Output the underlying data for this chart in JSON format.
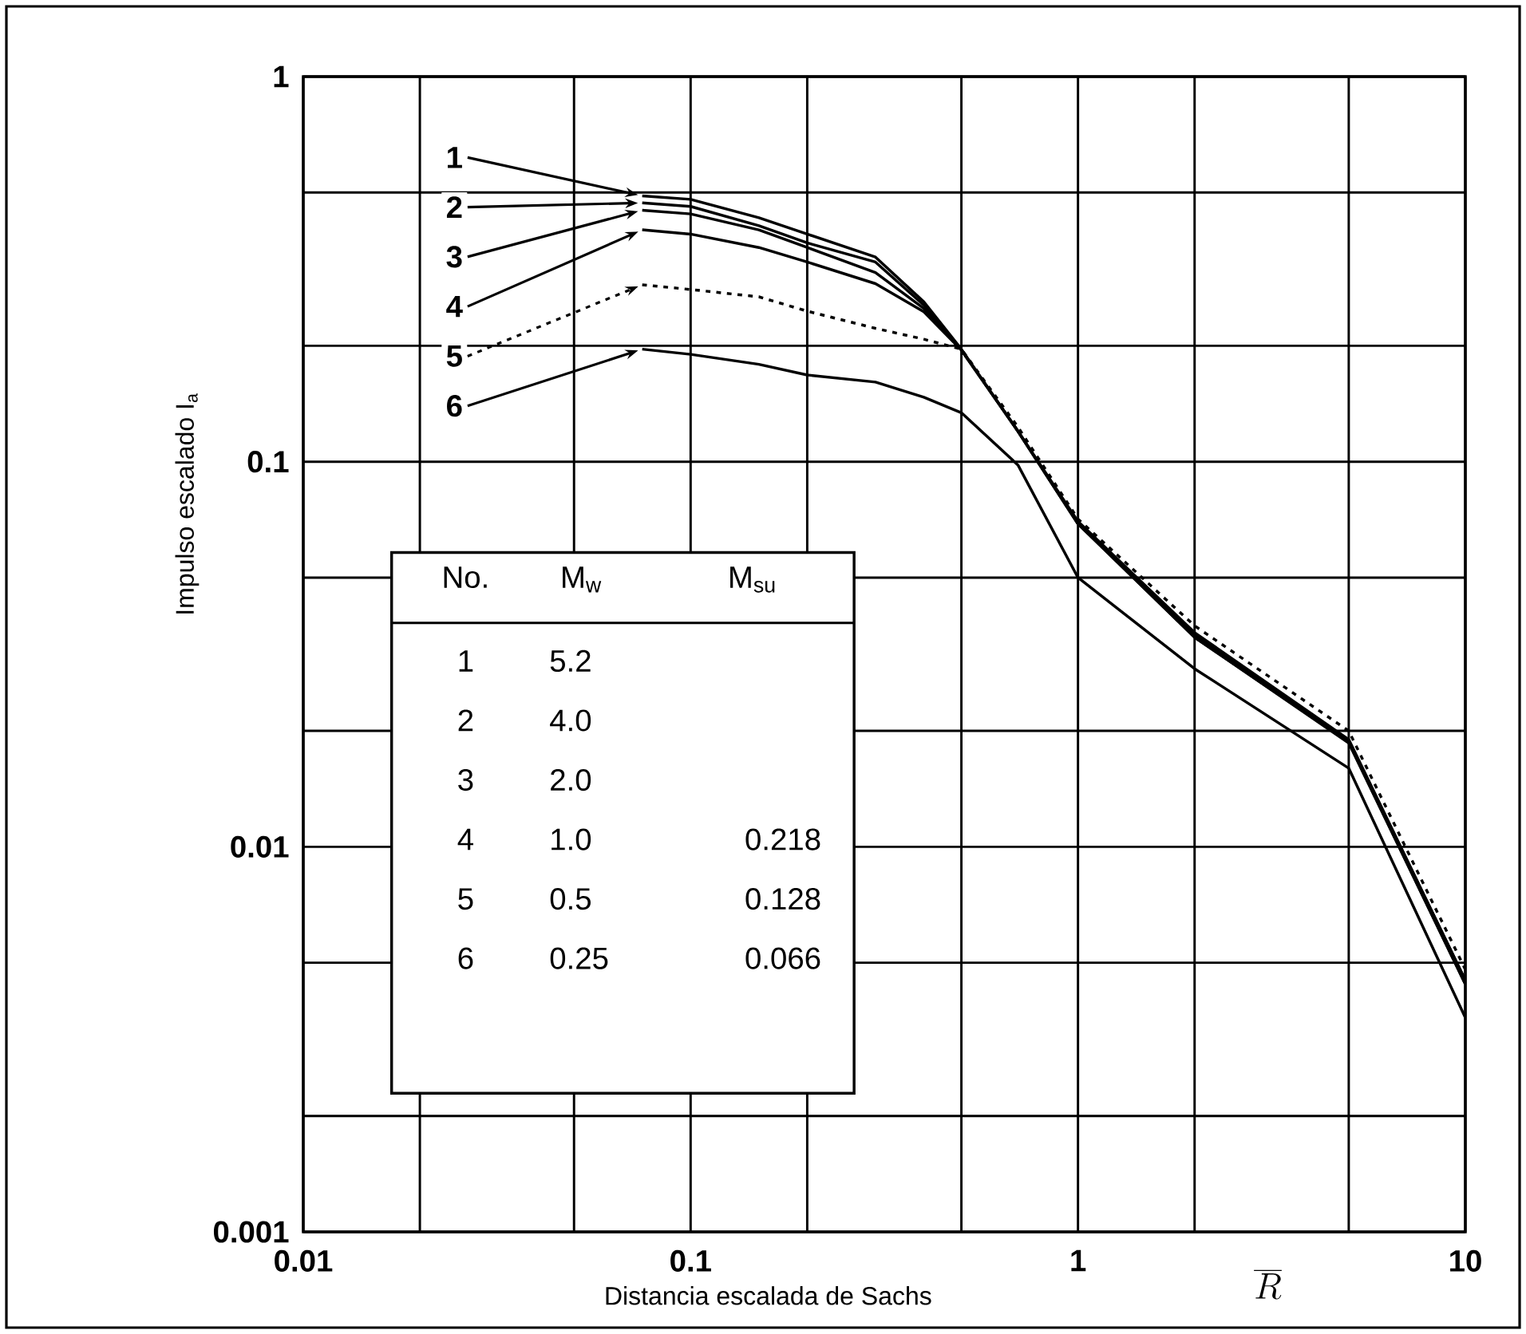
{
  "chart_data": {
    "type": "line",
    "xlabel": "Distancia escalada de Sachs",
    "ylabel": "Impulso escalado I$_{a}$",
    "log": "xy",
    "grid": true,
    "legend": "top left",
    "marker": "none",
    "line_style": "solid",
    "xlim": [
      0.01,
      10
    ],
    "ylim": [
      0.001,
      1
    ],
    "xticks": [
      0.01,
      {
        "value": 0.02,
        "label": null
      },
      {
        "value": 0.05,
        "label": null
      },
      0.1,
      {
        "value": 0.2,
        "label": null
      },
      {
        "value": 0.5,
        "label": null
      },
      1,
      {
        "value": 2,
        "label": null
      },
      {
        "value": 5,
        "label": null
      },
      10
    ],
    "yticks": [
      0.001,
      {
        "value": 0.002,
        "label": null
      },
      {
        "value": 0.005,
        "label": null
      },
      0.01,
      {
        "value": 0.02,
        "label": null
      },
      {
        "value": 0.05,
        "label": null
      },
      0.1,
      {
        "value": 0.2,
        "label": null
      },
      {
        "value": 0.5,
        "label": null
      },
      1
    ],
    "x": [
      0.075,
      0.1,
      0.15,
      0.2,
      0.3,
      0.4,
      0.5,
      0.7,
      1,
      2,
      5,
      10
    ],
    "series": [
      {
        "name": "1",
        "color": "#000000",
        "values": [
          0.49,
          0.48,
          0.43,
          0.39,
          0.34,
          0.26,
          0.196,
          0.12,
          0.07,
          0.036,
          0.019,
          0.0045
        ]
      },
      {
        "name": "2",
        "color": "#000000",
        "values": [
          0.47,
          0.46,
          0.41,
          0.37,
          0.33,
          0.255,
          0.195,
          0.12,
          0.069,
          0.0355,
          0.0188,
          0.0045
        ]
      },
      {
        "name": "3",
        "color": "#000000",
        "values": [
          0.45,
          0.44,
          0.4,
          0.36,
          0.31,
          0.25,
          0.195,
          0.12,
          0.069,
          0.035,
          0.0187,
          0.0044
        ]
      },
      {
        "name": "4",
        "color": "#000000",
        "values": [
          0.4,
          0.39,
          0.36,
          0.33,
          0.29,
          0.245,
          0.195,
          0.12,
          0.069,
          0.035,
          0.0186,
          0.0044
        ]
      },
      {
        "name": "5",
        "color": "#000000",
        "line_style": "dotted",
        "values": [
          0.288,
          0.28,
          0.268,
          0.246,
          0.222,
          0.208,
          0.196,
          0.123,
          0.071,
          0.0375,
          0.02,
          0.0048
        ]
      },
      {
        "name": "6",
        "color": "#000000",
        "values": [
          0.196,
          0.19,
          0.179,
          0.168,
          0.161,
          0.147,
          0.134,
          0.098,
          0.05,
          0.029,
          0.016,
          0.0036
        ]
      }
    ],
    "annotations": [
      "No.",
      "M$_{w}$",
      "M$_{su}$",
      "5.2",
      "4.0",
      "2.0",
      "1.0",
      "0.5",
      "0.25",
      "0.218",
      "0.128",
      "0.066",
      "\\overline{R}"
    ]
  }
}
